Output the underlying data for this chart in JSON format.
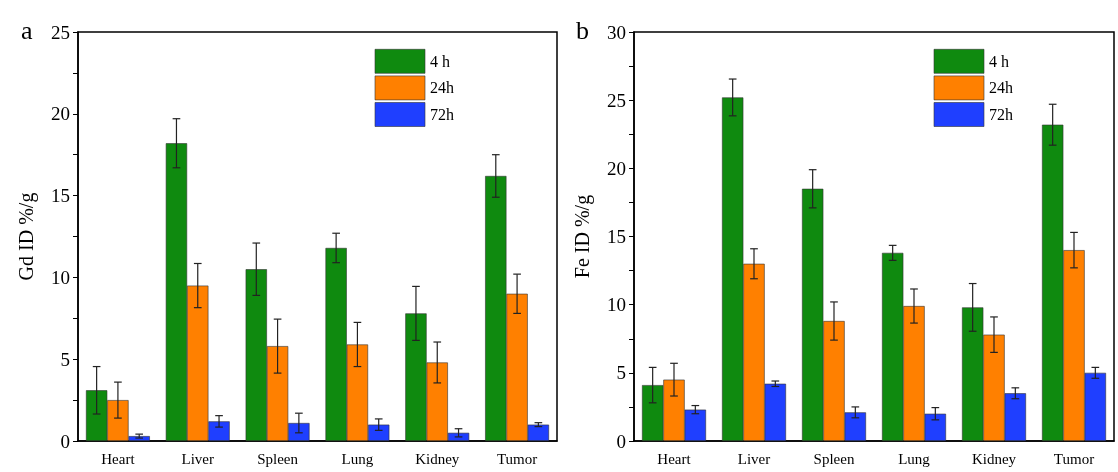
{
  "chart_data": [
    {
      "type": "bar",
      "title": "a",
      "ylabel": "Gd ID %/g",
      "categories": [
        "Heart",
        "Liver",
        "Spleen",
        "Lung",
        "Kidney",
        "Tumor"
      ],
      "series": [
        {
          "name": "4 h",
          "color": "#0f8a0f",
          "values": [
            3.1,
            18.2,
            10.5,
            11.8,
            7.8,
            16.2
          ],
          "errors": [
            1.45,
            1.5,
            1.6,
            0.9,
            1.65,
            1.3
          ]
        },
        {
          "name": "24h",
          "color": "#ff8000",
          "values": [
            2.5,
            9.5,
            5.8,
            5.9,
            4.8,
            9.0
          ],
          "errors": [
            1.1,
            1.35,
            1.65,
            1.35,
            1.25,
            1.2
          ]
        },
        {
          "name": "72h",
          "color": "#1f3fff",
          "values": [
            0.3,
            1.2,
            1.1,
            1.0,
            0.5,
            1.0
          ],
          "errors": [
            0.12,
            0.35,
            0.6,
            0.35,
            0.25,
            0.12
          ]
        }
      ],
      "ylim": [
        0,
        25
      ],
      "yticks": [
        0,
        {
          "value": 2.5,
          "label": null
        },
        5,
        {
          "value": 7.5,
          "label": null
        },
        10,
        {
          "value": 12.5,
          "label": null
        },
        15,
        {
          "value": 17.5,
          "label": null
        },
        20,
        {
          "value": 22.5,
          "label": null
        },
        25
      ],
      "grid": false,
      "legend": "top right"
    },
    {
      "type": "bar",
      "title": "b",
      "ylabel": "Fe ID %/g",
      "categories": [
        "Heart",
        "Liver",
        "Spleen",
        "Lung",
        "Kidney",
        "Tumor"
      ],
      "series": [
        {
          "name": "4 h",
          "color": "#0f8a0f",
          "values": [
            4.1,
            25.2,
            18.5,
            13.8,
            9.8,
            23.2
          ],
          "errors": [
            1.3,
            1.35,
            1.4,
            0.55,
            1.75,
            1.5
          ]
        },
        {
          "name": "24h",
          "color": "#ff8000",
          "values": [
            4.5,
            13.0,
            8.8,
            9.9,
            7.8,
            14.0
          ],
          "errors": [
            1.2,
            1.1,
            1.4,
            1.25,
            1.3,
            1.3
          ]
        },
        {
          "name": "72h",
          "color": "#1f3fff",
          "values": [
            2.3,
            4.2,
            2.1,
            2.0,
            3.5,
            5.0
          ],
          "errors": [
            0.3,
            0.2,
            0.4,
            0.45,
            0.4,
            0.4
          ]
        }
      ],
      "ylim": [
        0,
        30
      ],
      "yticks": [
        0,
        {
          "value": 2.5,
          "label": null
        },
        5,
        {
          "value": 7.5,
          "label": null
        },
        10,
        {
          "value": 12.5,
          "label": null
        },
        15,
        {
          "value": 17.5,
          "label": null
        },
        20,
        {
          "value": 22.5,
          "label": null
        },
        25,
        {
          "value": 27.5,
          "label": null
        },
        30
      ],
      "grid": false,
      "legend": "top right"
    }
  ]
}
